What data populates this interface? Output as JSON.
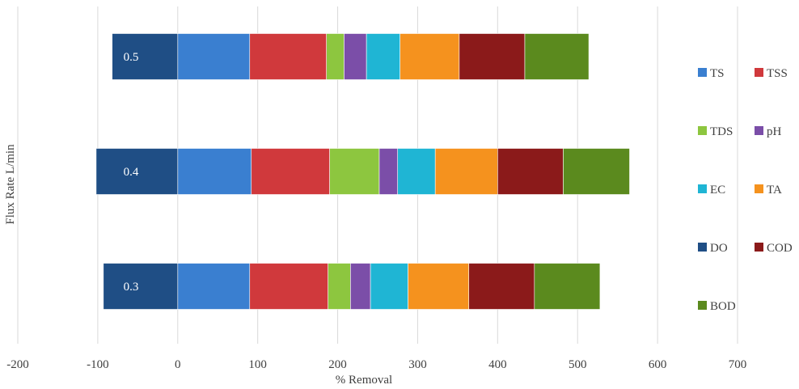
{
  "chart_data": {
    "type": "bar",
    "orientation": "horizontal",
    "stacked": true,
    "title": "",
    "xlabel": "% Removal",
    "ylabel": "Flux Rate L/min",
    "xlim": [
      -200,
      700
    ],
    "xticks": [
      -200,
      -100,
      0,
      100,
      200,
      300,
      400,
      500,
      600,
      700
    ],
    "grid": "vertical",
    "legend_position": "right",
    "categories": [
      "0.5",
      "0.4",
      "0.3"
    ],
    "series": [
      {
        "name": "TS",
        "color": "#3A7FD0",
        "values": [
          90,
          92,
          90
        ]
      },
      {
        "name": "TSS",
        "color": "#D0393C",
        "values": [
          96,
          98,
          98
        ]
      },
      {
        "name": "TDS",
        "color": "#8DC63F",
        "values": [
          22,
          62,
          28
        ]
      },
      {
        "name": "pH",
        "color": "#7B4EA8",
        "values": [
          28,
          23,
          25
        ]
      },
      {
        "name": "EC",
        "color": "#1FB5D4",
        "values": [
          42,
          47,
          47
        ]
      },
      {
        "name": "TA",
        "color": "#F5921E",
        "values": [
          74,
          78,
          76
        ]
      },
      {
        "name": "DO",
        "color": "#1F4E85",
        "values": [
          -82,
          -102,
          -93
        ]
      },
      {
        "name": "COD",
        "color": "#8B1A1A",
        "values": [
          82,
          82,
          82
        ]
      },
      {
        "name": "BOD",
        "color": "#5B8A1E",
        "values": [
          80,
          83,
          82
        ]
      }
    ]
  }
}
